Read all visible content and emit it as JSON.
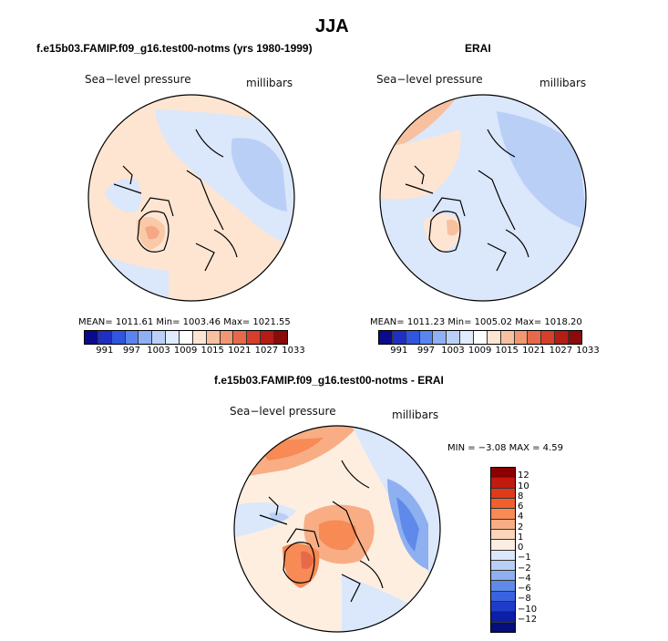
{
  "title": "JJA",
  "panels": {
    "model": {
      "title": "f.e15b03.FAMIP.f09_g16.test00-notms (yrs 1980-1999)",
      "variable": "Sea−level pressure",
      "units": "millibars",
      "stats": "MEAN= 1011.61   Min= 1003.46   Max= 1021.55"
    },
    "obs": {
      "title": "ERAI",
      "variable": "Sea−level pressure",
      "units": "millibars",
      "stats": "MEAN= 1011.23   Min= 1005.02   Max= 1018.20"
    },
    "diff": {
      "title": "f.e15b03.FAMIP.f09_g16.test00-notms - ERAI",
      "variable": "Sea−level pressure",
      "units": "millibars",
      "stats": "MIN =   −3.08  MAX =    4.59"
    }
  },
  "colorbar_abs": {
    "ticks": [
      "991",
      "997",
      "1003",
      "1009",
      "1015",
      "1021",
      "1027",
      "1033"
    ],
    "colors": [
      "#0a0a8c",
      "#1f2fc2",
      "#3055e0",
      "#5a84ee",
      "#8fb0f4",
      "#bcd0f7",
      "#e0ebfb",
      "#ffffff",
      "#fde5d2",
      "#f7c1a0",
      "#f29870",
      "#e8694a",
      "#d63f2a",
      "#b51c14",
      "#8b0a0a"
    ]
  },
  "colorbar_diff": {
    "ticks": [
      "12",
      "10",
      "8",
      "6",
      "4",
      "2",
      "1",
      "0",
      "−1",
      "−2",
      "−4",
      "−6",
      "−8",
      "−10",
      "−12"
    ],
    "colors": [
      "#8b0000",
      "#c21a0e",
      "#e03a1a",
      "#f0602f",
      "#f78a55",
      "#f9ad84",
      "#fcd5bb",
      "#fdeee0",
      "#dbe7fa",
      "#b9cff6",
      "#8eb0f1",
      "#5f8ae9",
      "#3a63e0",
      "#1e3ccc",
      "#0d1fa6",
      "#050e7a"
    ]
  }
}
